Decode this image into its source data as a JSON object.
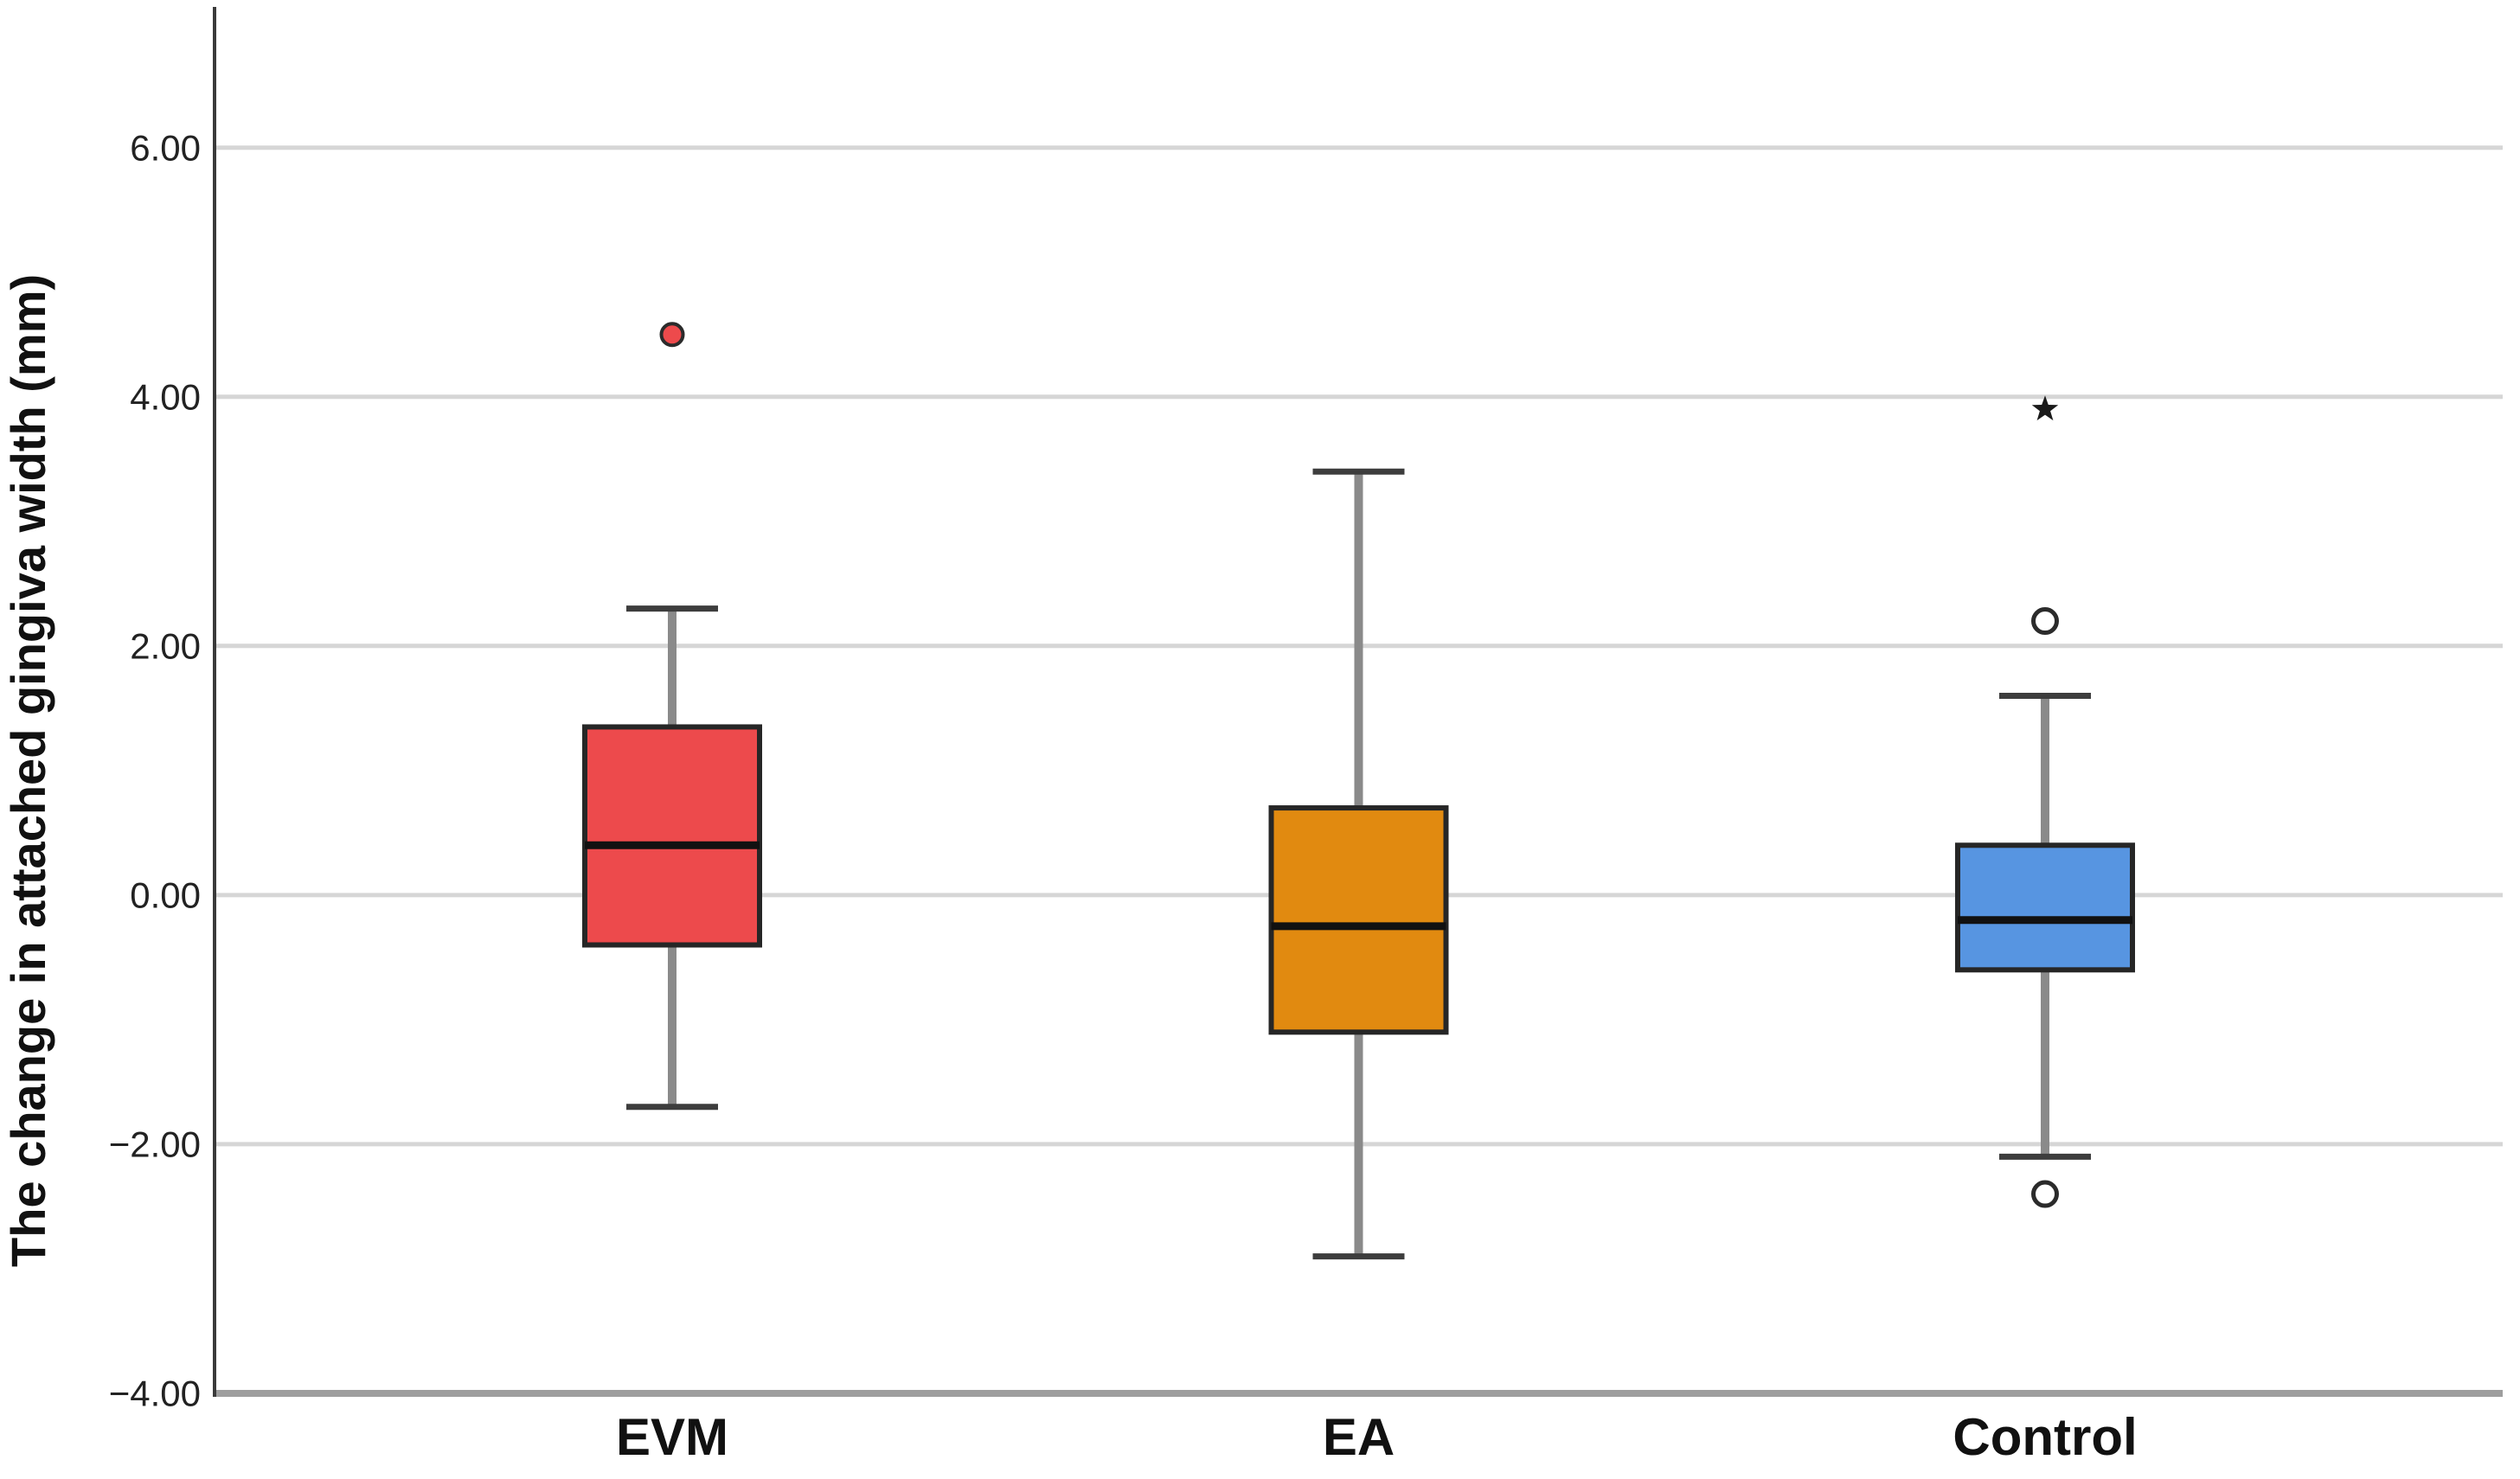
{
  "chart_data": {
    "type": "boxplot",
    "title": "",
    "ylabel": "The change in attached gingiva width (mm)",
    "xlabel": "",
    "ylim": [
      -4,
      7.13
    ],
    "yticks": [
      -4,
      -2,
      0,
      2,
      4,
      6
    ],
    "ytick_labels": [
      "−4.00",
      "−2.00",
      "0.00",
      "2.00",
      "4.00",
      "6.00"
    ],
    "grid": "horizontal",
    "legend": "none",
    "categories": [
      "EVM",
      "EA",
      "Control"
    ],
    "series": [
      {
        "name": "EVM",
        "box_color": "#ed4a4c",
        "whisker_low": -1.7,
        "q1": -0.4,
        "median": 0.4,
        "q3": 1.35,
        "whisker_high": 2.3,
        "outliers": [
          {
            "value": 4.5,
            "marker": "filled-circle"
          }
        ]
      },
      {
        "name": "EA",
        "box_color": "#e18a10",
        "whisker_low": -2.9,
        "q1": -1.1,
        "median": -0.25,
        "q3": 0.7,
        "whisker_high": 3.4,
        "outliers": []
      },
      {
        "name": "Control",
        "box_color": "#5795e1",
        "whisker_low": -2.1,
        "q1": -0.6,
        "median": -0.2,
        "q3": 0.4,
        "whisker_high": 1.6,
        "outliers": [
          {
            "value": 3.9,
            "marker": "star"
          },
          {
            "value": 2.2,
            "marker": "open-circle"
          },
          {
            "value": -2.4,
            "marker": "open-circle"
          }
        ]
      }
    ],
    "colors": {
      "background": "#ffffff",
      "grid": "#d6d6d6",
      "y_axis": "#3a3a3a",
      "x_axis_frame": "#9e9e9e",
      "whisker": "#8a8a8a",
      "whisker_cap": "#3d3d3d",
      "box_border": "#262626",
      "median": "#111111",
      "outlier_stroke": "#2b2b2b",
      "star": "#1a1a1a",
      "tick_text": "#222222",
      "label_text": "#111111"
    }
  }
}
